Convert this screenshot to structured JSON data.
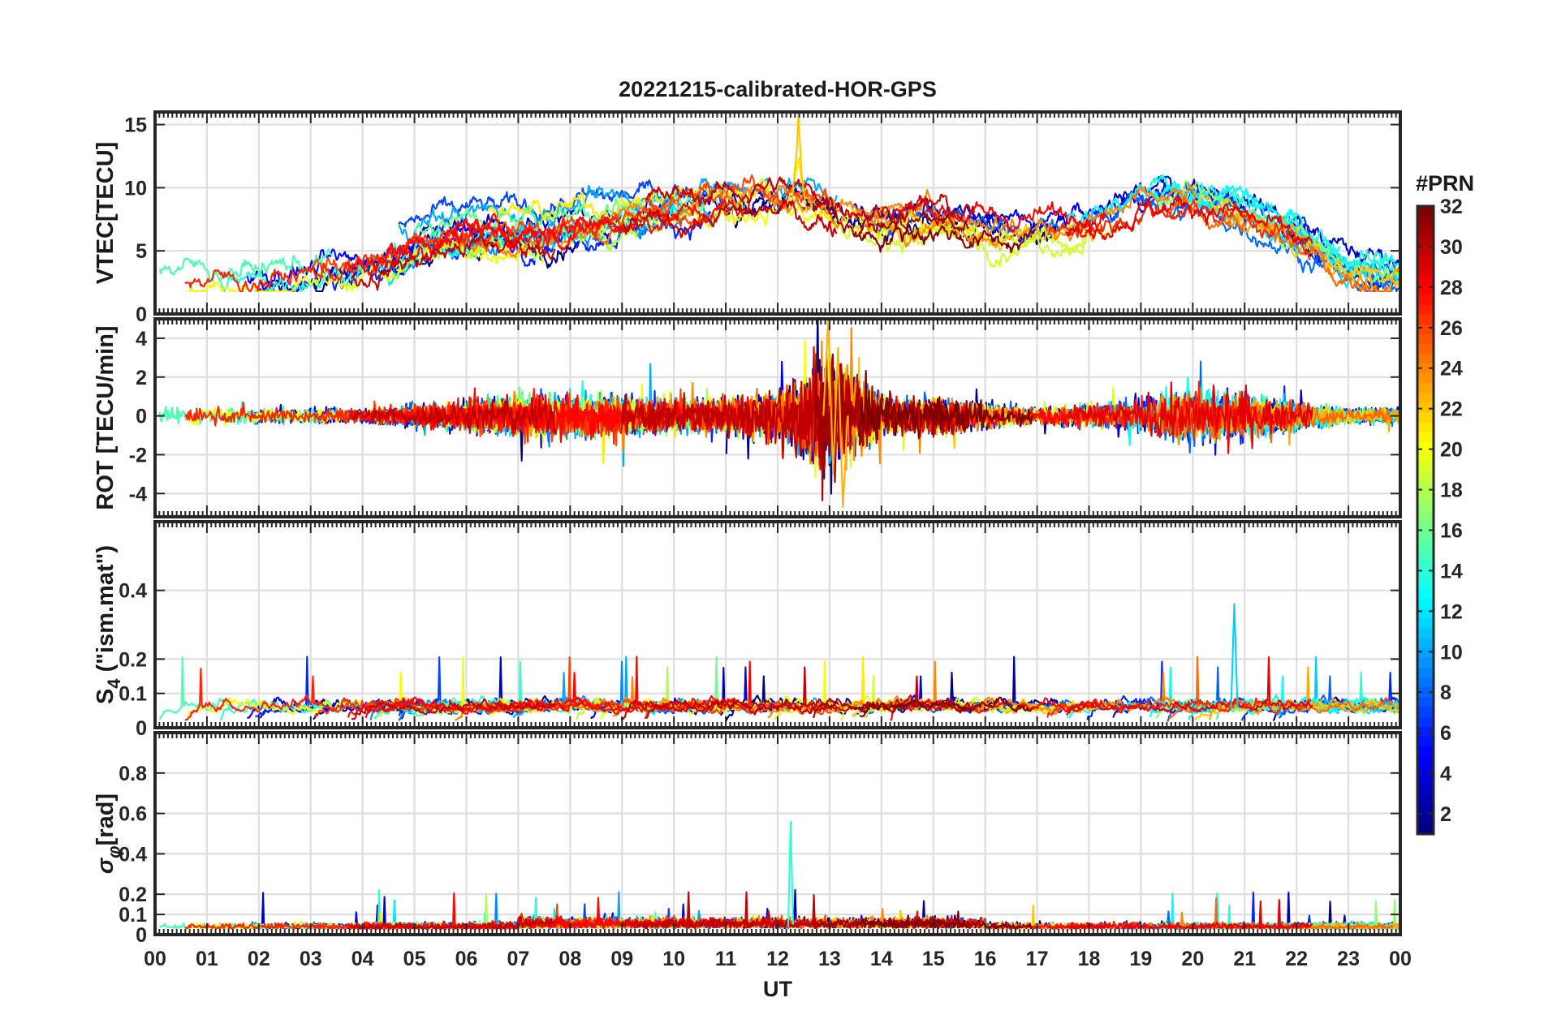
{
  "chart_data": {
    "type": "line",
    "title": "20221215-calibrated-HOR-GPS",
    "xlabel": "UT",
    "x_ticks": [
      "00",
      "01",
      "02",
      "03",
      "04",
      "05",
      "06",
      "07",
      "08",
      "09",
      "10",
      "11",
      "12",
      "13",
      "14",
      "15",
      "16",
      "17",
      "18",
      "19",
      "20",
      "21",
      "22",
      "23",
      "00"
    ],
    "xlim": [
      0,
      24
    ],
    "grid": true,
    "colorbar": {
      "title": "#PRN",
      "colormap": "jet",
      "range": [
        1,
        32
      ],
      "ticks": [
        "2",
        "4",
        "6",
        "8",
        "10",
        "12",
        "14",
        "16",
        "18",
        "20",
        "22",
        "24",
        "26",
        "28",
        "30",
        "32"
      ]
    },
    "panels": [
      {
        "id": "vtec",
        "ylabel": "VTEC[TECU]",
        "ylim": [
          0,
          16
        ],
        "yticks": [
          "0",
          "5",
          "10",
          "15"
        ],
        "ytick_values": [
          0,
          5,
          10,
          15
        ],
        "series_envelope": {
          "x_hours": [
            0,
            1,
            2,
            3,
            4,
            5,
            6,
            7,
            8,
            9,
            10,
            11,
            12,
            13,
            14,
            15,
            16,
            17,
            18,
            19,
            20,
            21,
            22,
            23,
            24
          ],
          "typical_vtec": [
            3,
            3,
            3,
            3.5,
            4,
            5.5,
            6.5,
            6.5,
            7,
            7.5,
            8,
            8.5,
            9,
            8,
            7,
            7.5,
            6.5,
            6.5,
            7,
            8.5,
            9,
            8,
            6,
            3.5,
            3
          ],
          "peak_vtec": 15.8,
          "peak_hour": 12.4
        }
      },
      {
        "id": "rot",
        "ylabel": "ROT [TECU/min]",
        "ylim": [
          -5.2,
          5
        ],
        "yticks": [
          "-4",
          "-2",
          "0",
          "2",
          "4"
        ],
        "ytick_values": [
          -4,
          -2,
          0,
          2,
          4
        ],
        "series_envelope": {
          "x_hours": [
            0,
            1,
            2,
            3,
            4,
            5,
            6,
            7,
            8,
            9,
            10,
            11,
            12,
            13,
            14,
            15,
            16,
            17,
            18,
            19,
            20,
            21,
            22,
            23,
            24
          ],
          "amplitude": [
            0.6,
            0.6,
            0.5,
            0.5,
            0.5,
            0.7,
            1.0,
            1.4,
            1.4,
            1.3,
            1.2,
            1.2,
            2.0,
            4.5,
            1.4,
            1.3,
            0.9,
            0.6,
            0.8,
            1.2,
            2.0,
            1.6,
            1.0,
            0.5,
            0.5
          ],
          "peak_positive": 5.0,
          "peak_negative": -4.7
        }
      },
      {
        "id": "s4",
        "ylabel": "S4 (\"ism.mat\")",
        "ylabel_main": "S",
        "ylabel_sub": "4",
        "ylabel_rest": " (\"ism.mat\")",
        "ylim": [
          0,
          0.6
        ],
        "yticks": [
          "0",
          "0.1",
          "0.2",
          "0.4"
        ],
        "ytick_values": [
          0,
          0.1,
          0.2,
          0.4
        ],
        "series_envelope": {
          "typical_max": 0.12,
          "peak_value": 0.36,
          "peak_hour": 20.8
        }
      },
      {
        "id": "sigma_phi",
        "ylabel": "σφ[rad]",
        "ylabel_main": "σ",
        "ylabel_sub": "φ",
        "ylabel_rest": "[rad]",
        "ylim": [
          0,
          1
        ],
        "yticks": [
          "0",
          "0.1",
          "0.2",
          "0.4",
          "0.6",
          "0.8"
        ],
        "ytick_values": [
          0,
          0.1,
          0.2,
          0.4,
          0.6,
          0.8
        ],
        "series_envelope": {
          "typical_max": 0.08,
          "peak_value": 0.56,
          "peak_hour": 12.25
        }
      }
    ]
  }
}
